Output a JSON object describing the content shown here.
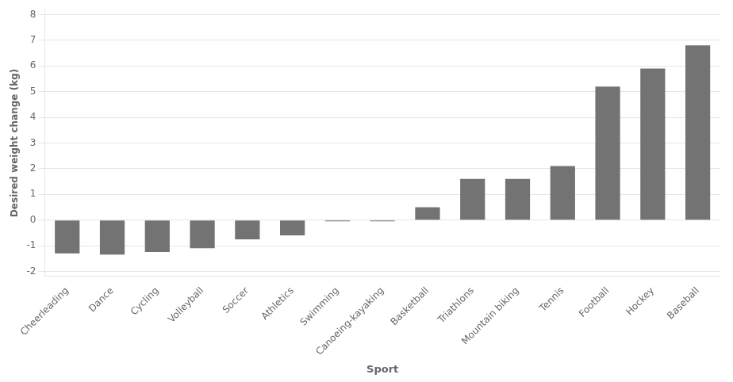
{
  "chart_data": {
    "type": "bar",
    "categories": [
      "Cheerleading",
      "Dance",
      "Cycling",
      "Volleyball",
      "Soccer",
      "Athletics",
      "Swimming",
      "Canoeing-kayaking",
      "Basketball",
      "Triathlons",
      "Mountain biking",
      "Tennis",
      "Football",
      "Hockey",
      "Baseball"
    ],
    "values": [
      -1.3,
      -1.35,
      -1.25,
      -1.1,
      -0.75,
      -0.6,
      -0.05,
      -0.05,
      0.5,
      1.6,
      1.6,
      2.1,
      5.2,
      5.9,
      6.8
    ],
    "color": "#737373",
    "xlabel": "Sport",
    "ylabel": "Desired weight change (kg)",
    "ylim": [
      -2.2,
      8.2
    ],
    "yticks": [
      -2,
      -1,
      0,
      1,
      2,
      3,
      4,
      5,
      6,
      7,
      8
    ],
    "grid": true
  }
}
